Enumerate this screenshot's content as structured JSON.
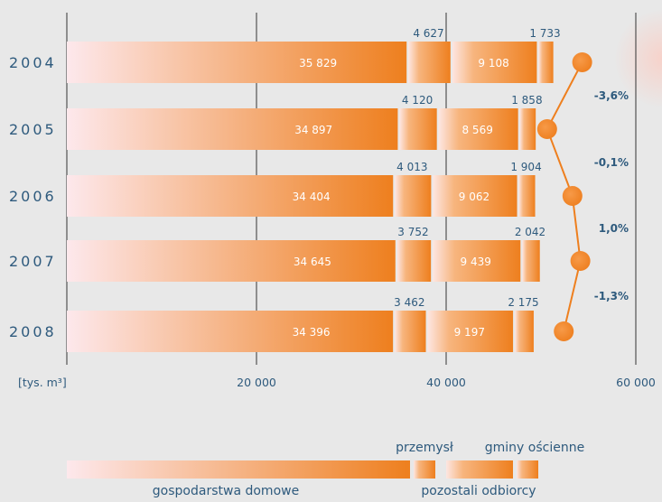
{
  "chart_data": {
    "type": "bar",
    "orientation": "horizontal",
    "stacked": true,
    "unit_label": "[tys. m³]",
    "x_ticks": [
      "20 000",
      "40 000",
      "60 000"
    ],
    "xlim": [
      0,
      60000
    ],
    "categories": [
      "2004",
      "2005",
      "2006",
      "2007",
      "2008"
    ],
    "series": [
      {
        "name": "gospodarstwa domowe",
        "values": [
          35829,
          34897,
          34404,
          34645,
          34396
        ],
        "labels": [
          "35 829",
          "34 897",
          "34 404",
          "34 645",
          "34 396"
        ]
      },
      {
        "name": "przemysł",
        "values": [
          4627,
          4120,
          4013,
          3752,
          3462
        ],
        "labels": [
          "4 627",
          "4 120",
          "4 013",
          "3 752",
          "3 462"
        ]
      },
      {
        "name": "pozostali odbiorcy",
        "values": [
          9108,
          8569,
          9062,
          9439,
          9197
        ],
        "labels": [
          "9 108",
          "8 569",
          "9 062",
          "9 439",
          "9 197"
        ]
      },
      {
        "name": "gminy ościenne",
        "values": [
          1733,
          1858,
          1904,
          2042,
          2175
        ],
        "labels": [
          "1 733",
          "1 858",
          "1 904",
          "2 042",
          "2 175"
        ]
      }
    ],
    "changes": [
      "-3,6%",
      "-0,1%",
      "1,0%",
      "-1,3%"
    ],
    "legend_position": "bottom",
    "grid": true
  },
  "colors": {
    "bar_light": "#fde8ec",
    "bar_dark": "#ee7f1e",
    "text": "#2e5a7d",
    "grid": "#333333",
    "background": "#e8e8e8"
  }
}
